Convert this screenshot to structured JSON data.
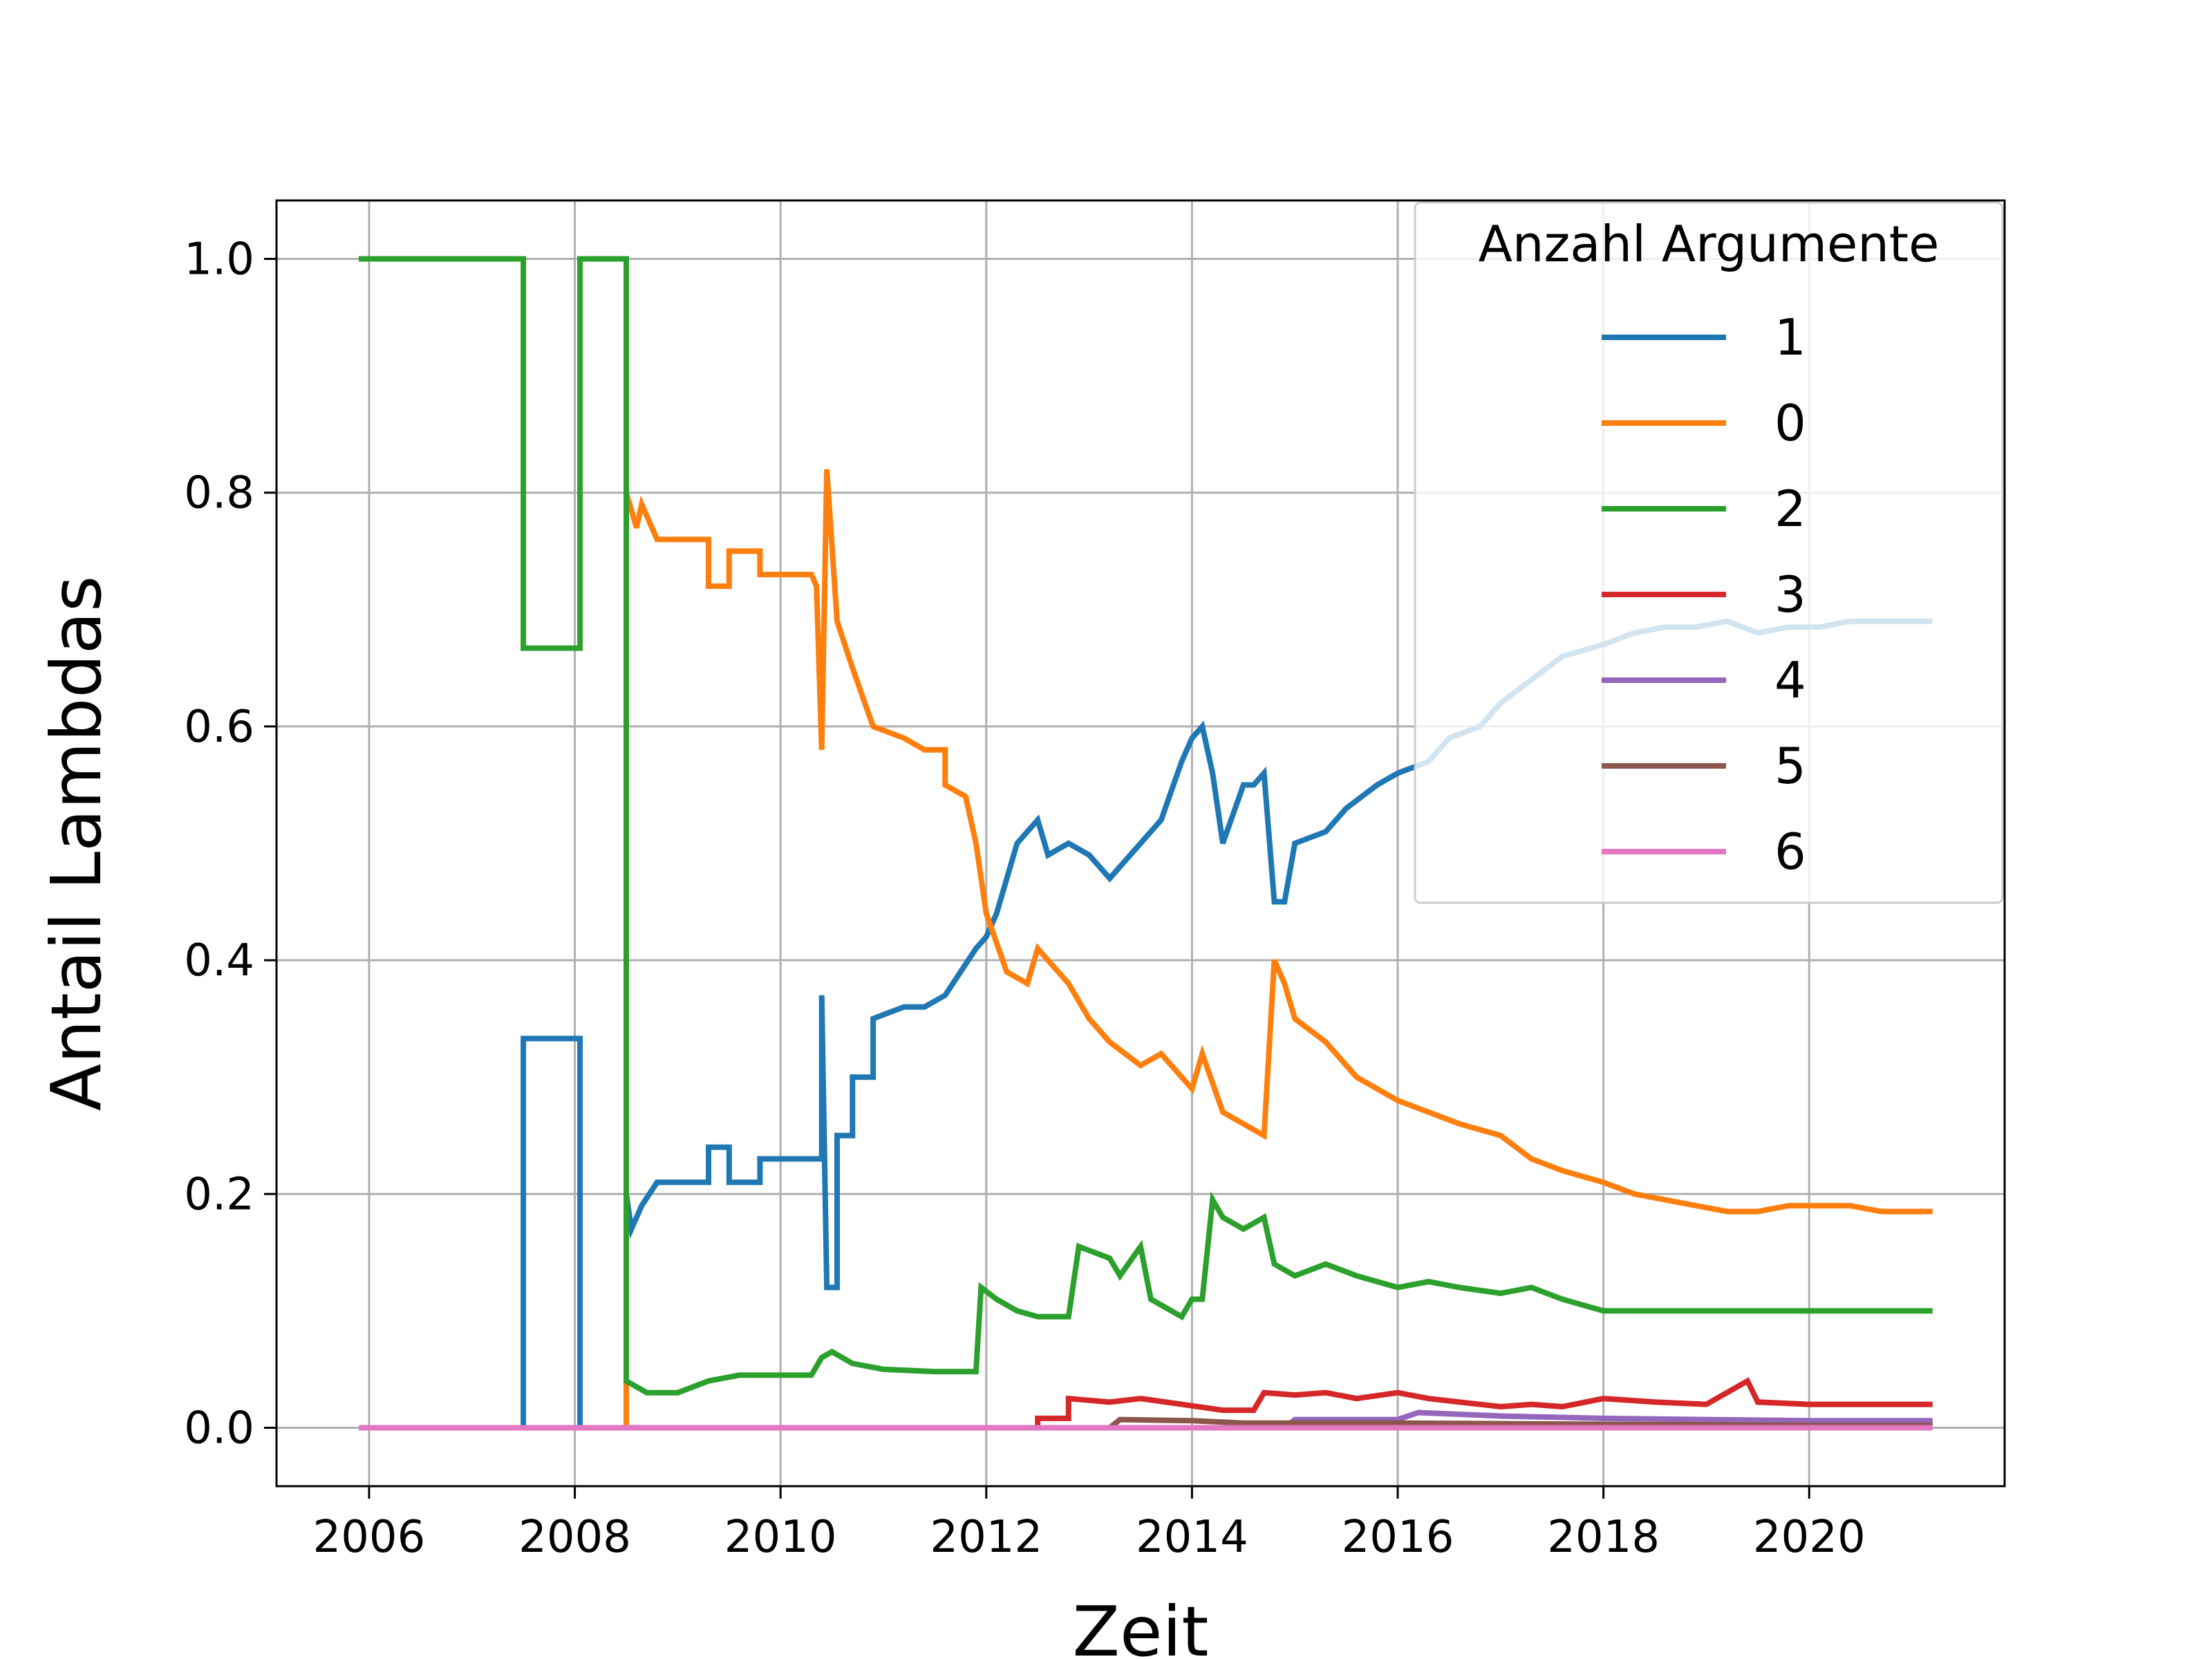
{
  "chart_data": {
    "type": "line",
    "title": "",
    "xlabel": "Zeit",
    "ylabel": "Antail Lambdas",
    "xlim": [
      2005.1,
      2021.9
    ],
    "ylim": [
      -0.05,
      1.05
    ],
    "x_ticks": [
      2006,
      2008,
      2010,
      2012,
      2014,
      2016,
      2018,
      2020
    ],
    "x_tick_labels": [
      "2006",
      "2008",
      "2010",
      "2012",
      "2014",
      "2016",
      "2018",
      "2020"
    ],
    "y_ticks": [
      0.0,
      0.2,
      0.4,
      0.6,
      0.8,
      1.0
    ],
    "y_tick_labels": [
      "0.0",
      "0.2",
      "0.4",
      "0.6",
      "0.8",
      "1.0"
    ],
    "grid": true,
    "legend": {
      "title": "Anzahl Argumente",
      "position": "top-right"
    },
    "series": [
      {
        "name": "1",
        "color": "#1f77b4",
        "x": [
          2005.9,
          2007.5,
          2007.5,
          2008.05,
          2008.05,
          2008.5,
          2008.5,
          2008.55,
          2008.65,
          2008.8,
          2008.8,
          2009.3,
          2009.3,
          2009.5,
          2009.5,
          2009.8,
          2009.8,
          2010.3,
          2010.4,
          2010.4,
          2010.45,
          2010.55,
          2010.55,
          2010.7,
          2010.7,
          2010.9,
          2010.9,
          2011.2,
          2011.4,
          2011.6,
          2011.6,
          2011.9,
          2012.0,
          2012.1,
          2012.3,
          2012.5,
          2012.6,
          2012.8,
          2013.0,
          2013.2,
          2013.5,
          2013.7,
          2013.9,
          2014.0,
          2014.1,
          2014.2,
          2014.3,
          2014.5,
          2014.6,
          2014.7,
          2014.8,
          2014.9,
          2015.0,
          2015.3,
          2015.5,
          2015.8,
          2016.0,
          2016.3,
          2016.5,
          2016.8,
          2017.0,
          2017.3,
          2017.6,
          2018.0,
          2018.3,
          2018.6,
          2018.9,
          2019.2,
          2019.5,
          2019.8,
          2020.1,
          2020.4,
          2020.7,
          2021.0,
          2021.2
        ],
        "y": [
          0.0,
          0.0,
          0.333,
          0.333,
          0.0,
          0.0,
          0.2,
          0.17,
          0.19,
          0.21,
          0.21,
          0.21,
          0.24,
          0.24,
          0.21,
          0.21,
          0.23,
          0.23,
          0.23,
          0.37,
          0.12,
          0.12,
          0.25,
          0.25,
          0.3,
          0.3,
          0.35,
          0.36,
          0.36,
          0.37,
          0.37,
          0.41,
          0.42,
          0.44,
          0.5,
          0.52,
          0.49,
          0.5,
          0.49,
          0.47,
          0.5,
          0.52,
          0.57,
          0.59,
          0.6,
          0.56,
          0.5,
          0.55,
          0.55,
          0.56,
          0.45,
          0.45,
          0.5,
          0.51,
          0.53,
          0.55,
          0.56,
          0.57,
          0.59,
          0.6,
          0.62,
          0.64,
          0.66,
          0.67,
          0.68,
          0.685,
          0.685,
          0.69,
          0.68,
          0.685,
          0.685,
          0.69,
          0.69,
          0.69,
          0.69
        ]
      },
      {
        "name": "0",
        "color": "#ff7f0e",
        "x": [
          2005.9,
          2008.5,
          2008.5,
          2008.6,
          2008.65,
          2008.8,
          2009.3,
          2009.3,
          2009.5,
          2009.5,
          2009.8,
          2009.8,
          2010.3,
          2010.35,
          2010.4,
          2010.45,
          2010.45,
          2010.55,
          2010.55,
          2010.7,
          2010.7,
          2010.9,
          2010.9,
          2011.2,
          2011.4,
          2011.6,
          2011.6,
          2011.8,
          2011.9,
          2012.0,
          2012.2,
          2012.4,
          2012.5,
          2012.8,
          2013.0,
          2013.2,
          2013.5,
          2013.7,
          2013.9,
          2014.0,
          2014.1,
          2014.3,
          2014.5,
          2014.7,
          2014.8,
          2014.85,
          2014.9,
          2015.0,
          2015.3,
          2015.6,
          2016.0,
          2016.3,
          2016.6,
          2017.0,
          2017.3,
          2017.6,
          2018.0,
          2018.3,
          2018.6,
          2018.9,
          2019.2,
          2019.5,
          2019.8,
          2020.1,
          2020.4,
          2020.7,
          2021.0,
          2021.2
        ],
        "y": [
          0.0,
          0.0,
          0.8,
          0.77,
          0.79,
          0.76,
          0.76,
          0.72,
          0.72,
          0.75,
          0.75,
          0.73,
          0.73,
          0.72,
          0.58,
          0.82,
          0.82,
          0.69,
          0.69,
          0.65,
          0.65,
          0.6,
          0.6,
          0.59,
          0.58,
          0.58,
          0.55,
          0.54,
          0.5,
          0.44,
          0.39,
          0.38,
          0.41,
          0.38,
          0.35,
          0.33,
          0.31,
          0.32,
          0.3,
          0.29,
          0.32,
          0.27,
          0.26,
          0.25,
          0.4,
          0.39,
          0.38,
          0.35,
          0.33,
          0.3,
          0.28,
          0.27,
          0.26,
          0.25,
          0.23,
          0.22,
          0.21,
          0.2,
          0.195,
          0.19,
          0.185,
          0.185,
          0.19,
          0.19,
          0.19,
          0.185,
          0.185,
          0.185
        ]
      },
      {
        "name": "2",
        "color": "#2ca02c",
        "x": [
          2005.9,
          2007.5,
          2007.5,
          2008.05,
          2008.05,
          2008.5,
          2008.5,
          2008.7,
          2009.0,
          2009.3,
          2009.6,
          2010.0,
          2010.3,
          2010.4,
          2010.5,
          2010.7,
          2011.0,
          2011.5,
          2011.9,
          2011.95,
          2012.1,
          2012.3,
          2012.5,
          2012.8,
          2012.9,
          2013.2,
          2013.3,
          2013.5,
          2013.6,
          2013.8,
          2013.9,
          2014.0,
          2014.1,
          2014.2,
          2014.3,
          2014.5,
          2014.7,
          2014.8,
          2015.0,
          2015.3,
          2015.6,
          2016.0,
          2016.3,
          2016.6,
          2017.0,
          2017.3,
          2017.6,
          2018.0,
          2018.3,
          2018.6,
          2018.9,
          2019.2,
          2019.5,
          2019.8,
          2020.1,
          2020.4,
          2020.7,
          2021.0,
          2021.2
        ],
        "y": [
          1.0,
          1.0,
          0.667,
          0.667,
          1.0,
          1.0,
          0.04,
          0.03,
          0.03,
          0.04,
          0.045,
          0.045,
          0.045,
          0.06,
          0.065,
          0.055,
          0.05,
          0.048,
          0.048,
          0.12,
          0.11,
          0.1,
          0.095,
          0.095,
          0.155,
          0.145,
          0.13,
          0.155,
          0.11,
          0.1,
          0.095,
          0.11,
          0.11,
          0.195,
          0.18,
          0.17,
          0.18,
          0.14,
          0.13,
          0.14,
          0.13,
          0.12,
          0.125,
          0.12,
          0.115,
          0.12,
          0.11,
          0.1,
          0.1,
          0.1,
          0.1,
          0.1,
          0.1,
          0.1,
          0.1,
          0.1,
          0.1,
          0.1,
          0.1
        ]
      },
      {
        "name": "3",
        "color": "#d62728",
        "x": [
          2005.9,
          2012.5,
          2012.5,
          2012.8,
          2012.8,
          2013.2,
          2013.5,
          2013.9,
          2014.3,
          2014.6,
          2014.7,
          2015.0,
          2015.3,
          2015.6,
          2016.0,
          2016.3,
          2016.6,
          2017.0,
          2017.3,
          2017.6,
          2018.0,
          2018.5,
          2019.0,
          2019.4,
          2019.5,
          2020.0,
          2020.5,
          2021.0,
          2021.2
        ],
        "y": [
          0.0,
          0.0,
          0.008,
          0.008,
          0.025,
          0.022,
          0.025,
          0.02,
          0.015,
          0.015,
          0.03,
          0.028,
          0.03,
          0.025,
          0.03,
          0.025,
          0.022,
          0.018,
          0.02,
          0.018,
          0.025,
          0.022,
          0.02,
          0.04,
          0.022,
          0.02,
          0.02,
          0.02,
          0.02
        ]
      },
      {
        "name": "4",
        "color": "#9467bd",
        "x": [
          2005.9,
          2014.9,
          2015.0,
          2016.0,
          2016.2,
          2017.0,
          2018.0,
          2019.0,
          2020.0,
          2021.2
        ],
        "y": [
          0.0,
          0.0,
          0.007,
          0.007,
          0.013,
          0.01,
          0.008,
          0.007,
          0.006,
          0.006
        ]
      },
      {
        "name": "5",
        "color": "#8c564b",
        "x": [
          2005.9,
          2013.2,
          2013.3,
          2014.0,
          2014.5,
          2016.0,
          2018.0,
          2020.0,
          2021.2
        ],
        "y": [
          0.0,
          0.0,
          0.007,
          0.006,
          0.004,
          0.004,
          0.003,
          0.002,
          0.002
        ]
      },
      {
        "name": "6",
        "color": "#e377c2",
        "x": [
          2005.9,
          2021.2
        ],
        "y": [
          0.0,
          0.0
        ]
      }
    ]
  }
}
